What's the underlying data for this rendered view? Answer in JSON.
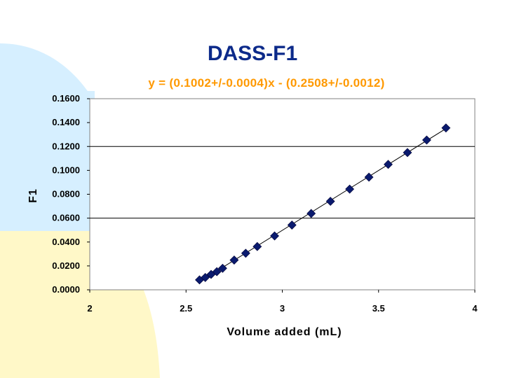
{
  "slide": {
    "title": "DASS-F1",
    "equation": "y = (0.1002+/-0.0004)x - (0.2508+/-0.0012)"
  },
  "colors": {
    "title": "#0c2a8a",
    "equation": "#ff9900",
    "marker": "#0a1a6e",
    "background_blob_blue": "#d6efff",
    "background_blob_yellow": "#fff8c8"
  },
  "chart_data": {
    "type": "scatter",
    "title": "",
    "xlabel": "Volume added (mL)",
    "ylabel": "F1",
    "xlim": [
      2,
      4
    ],
    "ylim": [
      0,
      0.16
    ],
    "x_ticks": [
      "2",
      "2.5",
      "3",
      "3.5",
      "4"
    ],
    "y_ticks": [
      "0.0000",
      "0.0200",
      "0.0400",
      "0.0600",
      "0.0800",
      "0.1000",
      "0.1200",
      "0.1400",
      "0.1600"
    ],
    "gridlines": [
      0.06,
      0.12
    ],
    "trendline": {
      "slope": 0.1002,
      "intercept": -0.2508
    },
    "points": [
      {
        "x": 2.57,
        "y": 0.0083
      },
      {
        "x": 2.6,
        "y": 0.0103
      },
      {
        "x": 2.63,
        "y": 0.0129
      },
      {
        "x": 2.66,
        "y": 0.0152
      },
      {
        "x": 2.69,
        "y": 0.018
      },
      {
        "x": 2.75,
        "y": 0.0249
      },
      {
        "x": 2.81,
        "y": 0.0306
      },
      {
        "x": 2.87,
        "y": 0.0362
      },
      {
        "x": 2.96,
        "y": 0.0451
      },
      {
        "x": 3.05,
        "y": 0.0542
      },
      {
        "x": 3.15,
        "y": 0.0639
      },
      {
        "x": 3.25,
        "y": 0.0741
      },
      {
        "x": 3.35,
        "y": 0.0843
      },
      {
        "x": 3.45,
        "y": 0.0943
      },
      {
        "x": 3.55,
        "y": 0.105
      },
      {
        "x": 3.65,
        "y": 0.1149
      },
      {
        "x": 3.75,
        "y": 0.1254
      },
      {
        "x": 3.85,
        "y": 0.1355
      }
    ]
  }
}
